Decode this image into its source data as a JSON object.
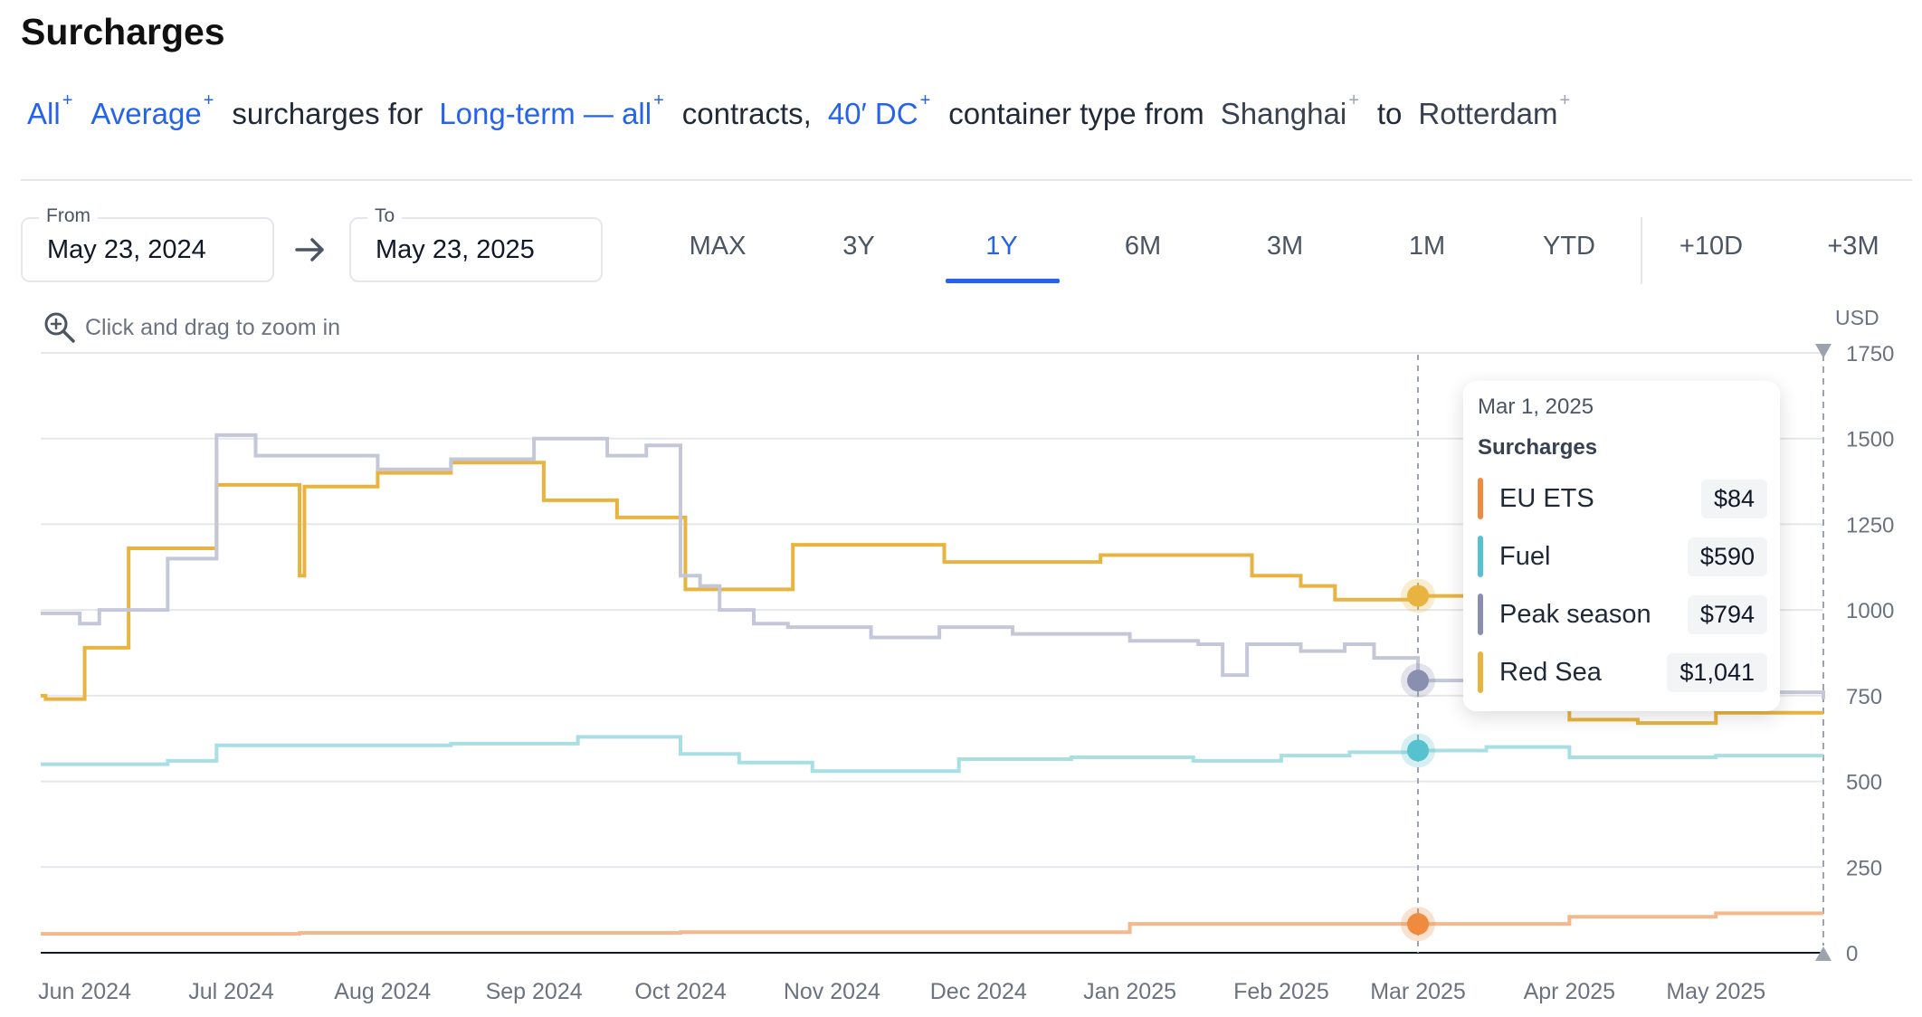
{
  "header": {
    "title": "Surcharges"
  },
  "filters": {
    "items": [
      {
        "text": "All",
        "kind": "link"
      },
      {
        "text": "Average",
        "kind": "link"
      },
      {
        "text": "surcharges for",
        "kind": "text"
      },
      {
        "text": "Long-term — all",
        "kind": "link"
      },
      {
        "text": "contracts,",
        "kind": "text"
      },
      {
        "text": "40′ DC",
        "kind": "link"
      },
      {
        "text": "container type from",
        "kind": "text"
      },
      {
        "text": "Shanghai",
        "kind": "muted"
      },
      {
        "text": "to",
        "kind": "text"
      },
      {
        "text": "Rotterdam",
        "kind": "muted"
      }
    ],
    "plus": "+"
  },
  "date_range": {
    "from_label": "From",
    "from_value": "May 23, 2024",
    "to_label": "To",
    "to_value": "May 23, 2025"
  },
  "range_buttons": [
    "MAX",
    "3Y",
    "1Y",
    "6M",
    "3M",
    "1M",
    "YTD",
    "+10D",
    "+3M"
  ],
  "range_active": "1Y",
  "zoom_hint": "Click and drag to zoom in",
  "tooltip": {
    "date": "Mar 1, 2025",
    "heading": "Surcharges",
    "rows": [
      {
        "name": "EU ETS",
        "value": "$84",
        "color": "#f08a3e"
      },
      {
        "name": "Fuel",
        "value": "$590",
        "color": "#56c1cf"
      },
      {
        "name": "Peak season",
        "value": "$794",
        "color": "#8a8fb0"
      },
      {
        "name": "Red Sea",
        "value": "$1,041",
        "color": "#e8b43f"
      }
    ]
  },
  "colors": {
    "accent": "#2563eb",
    "eu_ets": "#f5b88c",
    "fuel": "#a7dfe5",
    "peak_season": "#c4c7d8",
    "red_sea": "#e8b43f"
  },
  "chart_data": {
    "type": "line",
    "step": true,
    "ylabel": "USD",
    "ylim": [
      0,
      1750
    ],
    "yticks": [
      0,
      250,
      500,
      750,
      1000,
      1250,
      1500,
      1750
    ],
    "ytick_labels": [
      "0",
      "250",
      "500",
      "750",
      "1000",
      "1250",
      "1500",
      "1750"
    ],
    "x_domain": [
      "2024-05-23",
      "2025-05-23"
    ],
    "x_ticks": [
      {
        "date": "2024-06-01",
        "label": "Jun 2024"
      },
      {
        "date": "2024-07-01",
        "label": "Jul 2024"
      },
      {
        "date": "2024-08-01",
        "label": "Aug 2024"
      },
      {
        "date": "2024-09-01",
        "label": "Sep 2024"
      },
      {
        "date": "2024-10-01",
        "label": "Oct 2024"
      },
      {
        "date": "2024-11-01",
        "label": "Nov 2024"
      },
      {
        "date": "2024-12-01",
        "label": "Dec 2024"
      },
      {
        "date": "2025-01-01",
        "label": "Jan 2025"
      },
      {
        "date": "2025-02-01",
        "label": "Feb 2025"
      },
      {
        "date": "2025-03-01",
        "label": "Mar 2025"
      },
      {
        "date": "2025-04-01",
        "label": "Apr 2025"
      },
      {
        "date": "2025-05-01",
        "label": "May 2025"
      }
    ],
    "hover_date": "2025-03-01",
    "series": [
      {
        "name": "Red Sea",
        "points": [
          [
            "2024-05-23",
            750
          ],
          [
            "2024-05-24",
            740
          ],
          [
            "2024-06-01",
            890
          ],
          [
            "2024-06-10",
            1180
          ],
          [
            "2024-06-28",
            1365
          ],
          [
            "2024-07-15",
            1100
          ],
          [
            "2024-07-16",
            1360
          ],
          [
            "2024-07-31",
            1400
          ],
          [
            "2024-08-15",
            1430
          ],
          [
            "2024-09-02",
            1430
          ],
          [
            "2024-09-03",
            1320
          ],
          [
            "2024-09-18",
            1270
          ],
          [
            "2024-10-02",
            1060
          ],
          [
            "2024-10-23",
            1060
          ],
          [
            "2024-10-24",
            1190
          ],
          [
            "2024-11-23",
            1190
          ],
          [
            "2024-11-24",
            1140
          ],
          [
            "2024-12-26",
            1160
          ],
          [
            "2025-01-25",
            1160
          ],
          [
            "2025-01-26",
            1100
          ],
          [
            "2025-02-05",
            1070
          ],
          [
            "2025-02-12",
            1030
          ],
          [
            "2025-03-01",
            1041
          ],
          [
            "2025-03-20",
            1041
          ],
          [
            "2025-04-01",
            680
          ],
          [
            "2025-04-15",
            670
          ],
          [
            "2025-05-01",
            700
          ],
          [
            "2025-05-23",
            700
          ]
        ]
      },
      {
        "name": "Peak season",
        "points": [
          [
            "2024-05-23",
            990
          ],
          [
            "2024-05-31",
            960
          ],
          [
            "2024-06-04",
            1000
          ],
          [
            "2024-06-18",
            1150
          ],
          [
            "2024-06-28",
            1510
          ],
          [
            "2024-07-06",
            1450
          ],
          [
            "2024-07-31",
            1410
          ],
          [
            "2024-08-15",
            1440
          ],
          [
            "2024-09-01",
            1500
          ],
          [
            "2024-09-16",
            1450
          ],
          [
            "2024-09-24",
            1480
          ],
          [
            "2024-10-01",
            1100
          ],
          [
            "2024-10-05",
            1070
          ],
          [
            "2024-10-09",
            1000
          ],
          [
            "2024-10-16",
            960
          ],
          [
            "2024-10-23",
            950
          ],
          [
            "2024-11-09",
            920
          ],
          [
            "2024-11-23",
            950
          ],
          [
            "2024-12-08",
            930
          ],
          [
            "2025-01-01",
            910
          ],
          [
            "2025-01-15",
            900
          ],
          [
            "2025-01-20",
            810
          ],
          [
            "2025-01-25",
            900
          ],
          [
            "2025-02-05",
            880
          ],
          [
            "2025-02-14",
            900
          ],
          [
            "2025-02-20",
            860
          ],
          [
            "2025-03-01",
            794
          ],
          [
            "2025-04-15",
            760
          ],
          [
            "2025-05-23",
            740
          ]
        ]
      },
      {
        "name": "Fuel",
        "points": [
          [
            "2024-05-23",
            550
          ],
          [
            "2024-06-18",
            560
          ],
          [
            "2024-06-28",
            605
          ],
          [
            "2024-08-15",
            610
          ],
          [
            "2024-09-10",
            630
          ],
          [
            "2024-10-01",
            580
          ],
          [
            "2024-10-13",
            555
          ],
          [
            "2024-10-28",
            530
          ],
          [
            "2024-11-27",
            565
          ],
          [
            "2024-12-20",
            570
          ],
          [
            "2025-01-14",
            560
          ],
          [
            "2025-02-01",
            575
          ],
          [
            "2025-02-15",
            585
          ],
          [
            "2025-03-01",
            590
          ],
          [
            "2025-03-15",
            600
          ],
          [
            "2025-04-01",
            570
          ],
          [
            "2025-05-01",
            575
          ],
          [
            "2025-05-23",
            575
          ]
        ]
      },
      {
        "name": "EU ETS",
        "points": [
          [
            "2024-05-23",
            55
          ],
          [
            "2024-07-15",
            58
          ],
          [
            "2024-10-01",
            60
          ],
          [
            "2025-01-01",
            84
          ],
          [
            "2025-03-01",
            84
          ],
          [
            "2025-04-01",
            105
          ],
          [
            "2025-05-01",
            115
          ],
          [
            "2025-05-23",
            115
          ]
        ]
      }
    ]
  }
}
